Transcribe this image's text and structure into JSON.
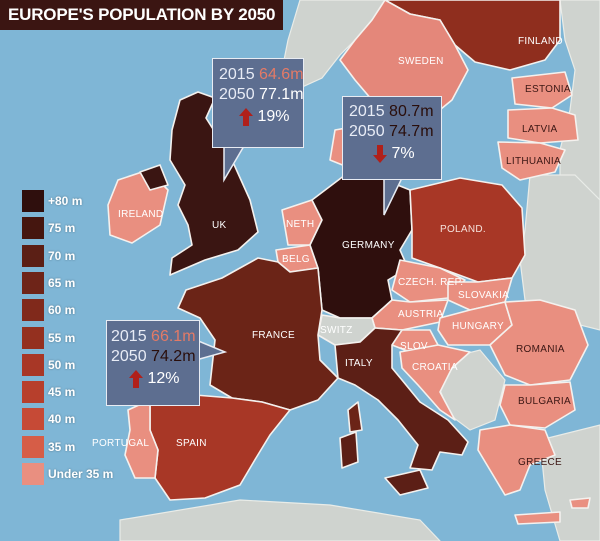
{
  "title": "EUROPE'S POPULATION BY 2050",
  "legend": {
    "items": [
      {
        "label": "+80 m",
        "color": "#2f0f0d"
      },
      {
        "label": "75 m",
        "color": "#45160f"
      },
      {
        "label": "70 m",
        "color": "#5b1f15"
      },
      {
        "label": "65 m",
        "color": "#6e2418"
      },
      {
        "label": "60 m",
        "color": "#80291b"
      },
      {
        "label": "55 m",
        "color": "#94301f"
      },
      {
        "label": "50 m",
        "color": "#a83726"
      },
      {
        "label": "45 m",
        "color": "#b73f2c"
      },
      {
        "label": "40 m",
        "color": "#c64a36"
      },
      {
        "label": "35 m",
        "color": "#d65d47"
      },
      {
        "label": "Under 35 m",
        "color": "#e98f80"
      }
    ]
  },
  "countries": {
    "finland": "FINLAND",
    "sweden": "SWEDEN",
    "estonia": "ESTONIA",
    "latvia": "LATVIA",
    "lithuania": "LITHUANIA",
    "ireland": "IRELAND",
    "uk": "UK",
    "neth": "NETH",
    "belg": "BELG",
    "germany": "GERMANY",
    "poland": "POLAND.",
    "czech": "CZECH. REP.",
    "slovakia": "SLOVAKIA",
    "austria": "AUSTRIA",
    "hungary": "HUNGARY",
    "france": "FRANCE",
    "switz": "SWITZ",
    "slov": "SLOV",
    "croatia": "CROATIA",
    "romania": "ROMANIA",
    "italy": "ITALY",
    "bulgaria": "BULGARIA",
    "portugal": "PORTUGAL",
    "spain": "SPAIN",
    "greece": "GREECE"
  },
  "callouts": {
    "uk": {
      "year1": "2015",
      "v1": "64.6m",
      "year2": "2050",
      "v2": "77.1m",
      "change": "19%",
      "direction": "up"
    },
    "germany": {
      "year1": "2015",
      "v1": "80.7m",
      "year2": "2050",
      "v2": "74.7m",
      "change": "7%",
      "direction": "down"
    },
    "france": {
      "year1": "2015",
      "v1": "66.1m",
      "year2": "2050",
      "v2": "74.2m",
      "change": "12%",
      "direction": "up"
    }
  }
}
